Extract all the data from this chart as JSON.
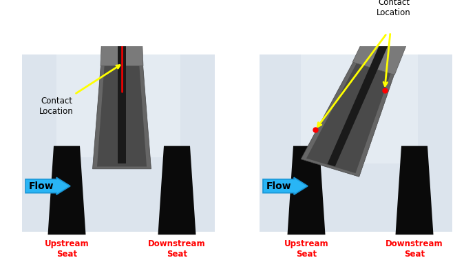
{
  "bg_gradient_top": "#e8ecf2",
  "bg_gradient_bot": "#c8d4e0",
  "upstream_label": "Upstream\nSeat",
  "downstream_label": "Downstream\nSeat",
  "flow_label": "Flow",
  "contact_label": "Contact\nLocation",
  "label_color": "red",
  "flow_arrow_color": "#29b5f5",
  "flow_arrow_edge": "#1a95d5",
  "annotation_arrow_color": "yellow",
  "contact_dot_color": "red",
  "gate_face_color": "#555555",
  "gate_side_color": "#888888",
  "gate_flange_color": "#666666",
  "gate_cap_color": "#777777",
  "gate_slot_color": "#1a1a1a",
  "seat_color": "#111111",
  "seat_grad_color": "#333333"
}
